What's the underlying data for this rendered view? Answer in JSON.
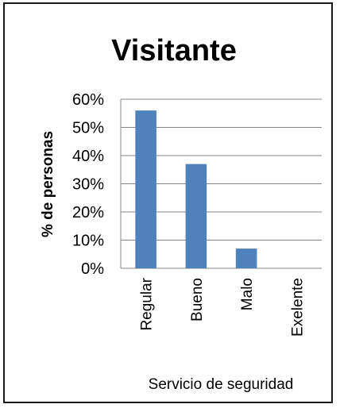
{
  "chart_data": {
    "type": "bar",
    "title": "Visitante",
    "xlabel": "Servicio de seguridad",
    "ylabel": "% de personas",
    "categories": [
      "Regular",
      "Bueno",
      "Malo",
      "Exelente"
    ],
    "values": [
      0.56,
      0.37,
      0.07,
      0.0
    ],
    "ylim": [
      0,
      0.6
    ],
    "yticks": [
      0,
      0.1,
      0.2,
      0.3,
      0.4,
      0.5,
      0.6
    ],
    "ytick_labels": [
      "0%",
      "10%",
      "20%",
      "30%",
      "40%",
      "50%",
      "60%"
    ],
    "grid": true,
    "legend": "none",
    "bar_color": "#4f81bd",
    "grid_color": "#868686"
  }
}
